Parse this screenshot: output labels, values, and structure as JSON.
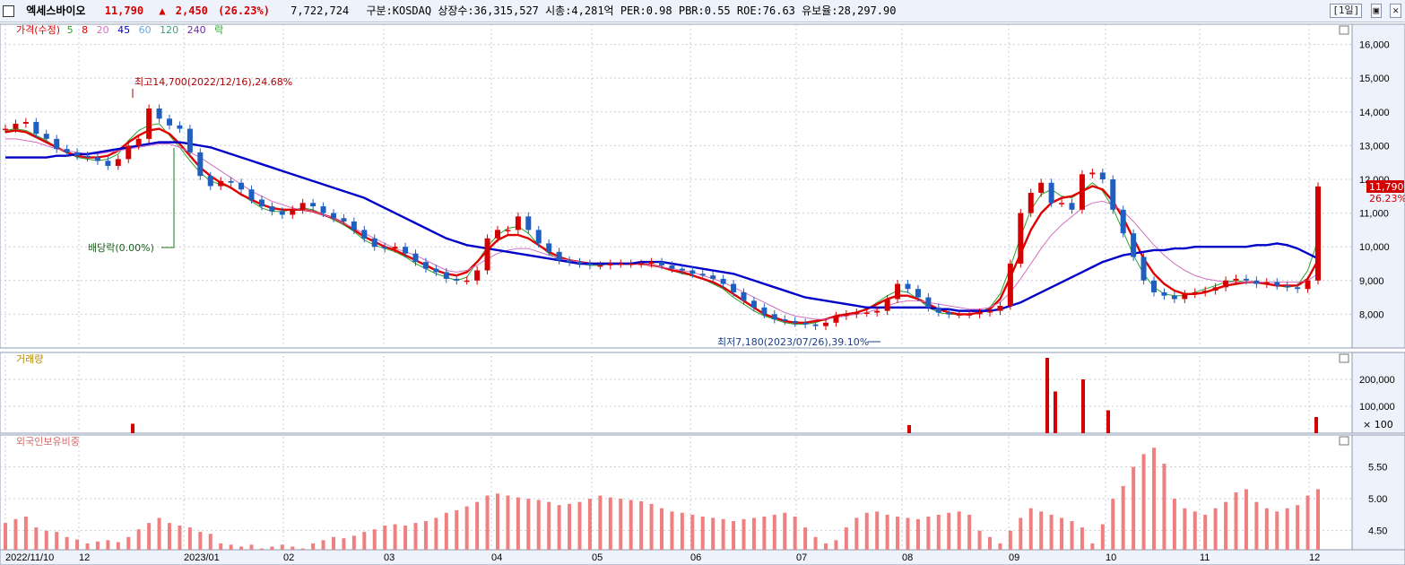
{
  "header": {
    "stock_name": "엑세스바이오",
    "price": "11,790",
    "change_arrow": "▲",
    "change": "2,450",
    "change_pct": "(26.23%)",
    "volume": "7,722,724",
    "info": "구분:KOSDAQ 상장수:36,315,527 시총:4,281억 PER:0.98 PBR:0.55 ROE:76.63 유보율:28,297.90",
    "period_button": "[1일]"
  },
  "price_panel": {
    "legend": [
      {
        "label": "가격(수정)",
        "color": "#d40000",
        "icon": "candle-icon"
      },
      {
        "label": "5",
        "color": "#2ca02c"
      },
      {
        "label": "8",
        "color": "#e00000"
      },
      {
        "label": "20",
        "color": "#d070c0"
      },
      {
        "label": "45",
        "color": "#0000c8"
      },
      {
        "label": "60",
        "color": "#6aa7d8"
      },
      {
        "label": "120",
        "color": "#3aa37a"
      },
      {
        "label": "240",
        "color": "#7030a0"
      },
      {
        "label": "락",
        "color": "#2ca02c"
      }
    ],
    "annotations": {
      "high": "최고14,700(2022/12/16),24.68%",
      "low": "최저7,180(2023/07/26),39.10%",
      "dividend": "배당락(0.00%)"
    },
    "last_price_label": "11,790",
    "last_pct_label": "26.23%"
  },
  "volume_panel": {
    "legend": "거래량",
    "unit_label": "× 100"
  },
  "foreign_panel": {
    "legend": "외국인보유비중"
  },
  "colors": {
    "up": "#d40000",
    "down": "#1f5fbf",
    "grid": "#c7cdd8",
    "axis_bg": "#eef2fa"
  },
  "chart_data": [
    {
      "type": "candlestick",
      "title": "",
      "x": [
        "2022/11/10",
        "12",
        "2023/01",
        "02",
        "03",
        "04",
        "05",
        "06",
        "07",
        "08",
        "09",
        "10",
        "11",
        "12"
      ],
      "ylim": [
        7000,
        16600
      ],
      "yticks": [
        8000,
        9000,
        10000,
        11000,
        12000,
        13000,
        14000,
        15000,
        16000
      ],
      "ytick_labels": [
        "8,000",
        "9,000",
        "10,000",
        "11,000",
        "12,000",
        "13,000",
        "14,000",
        "15,000",
        "16,000"
      ],
      "close_series": [
        13500,
        13650,
        13700,
        13350,
        13200,
        12900,
        12800,
        12700,
        12650,
        12550,
        12400,
        12600,
        13000,
        13200,
        14100,
        13800,
        13600,
        13500,
        12800,
        12100,
        11800,
        11950,
        11900,
        11700,
        11400,
        11200,
        11050,
        10950,
        11100,
        11300,
        11200,
        11000,
        10850,
        10750,
        10500,
        10250,
        10000,
        9950,
        10000,
        9800,
        9550,
        9350,
        9250,
        9050,
        9000,
        9000,
        9300,
        10250,
        10500,
        10500,
        10900,
        10500,
        10100,
        9850,
        9600,
        9550,
        9500,
        9450,
        9450,
        9500,
        9500,
        9500,
        9500,
        9550,
        9450,
        9350,
        9300,
        9200,
        9150,
        9050,
        8900,
        8650,
        8400,
        8200,
        8000,
        7850,
        7800,
        7750,
        7700,
        7650,
        7750,
        7950,
        8000,
        8050,
        8050,
        8100,
        8450,
        8900,
        8750,
        8500,
        8200,
        8050,
        8000,
        8000,
        8000,
        8050,
        8100,
        8250,
        9500,
        11000,
        11600,
        11900,
        11300,
        11300,
        11100,
        12150,
        12200,
        12000,
        11100,
        10400,
        9700,
        9000,
        8650,
        8550,
        8450,
        8600,
        8650,
        8700,
        8800,
        9000,
        9050,
        9000,
        8900,
        8950,
        8850,
        8800,
        8750,
        9000,
        11790
      ],
      "ma": {
        "5": [
          13450,
          13500,
          13450,
          13300,
          13150,
          12950,
          12800,
          12650,
          12600,
          12550,
          12600,
          12750,
          13150,
          13450,
          13600,
          13650,
          13300,
          12950,
          12550,
          12200,
          11950,
          11850,
          11750,
          11550,
          11350,
          11150,
          11050,
          11050,
          11100,
          11150,
          11100,
          10950,
          10800,
          10650,
          10450,
          10200,
          10050,
          9950,
          9850,
          9700,
          9500,
          9350,
          9200,
          9100,
          9000,
          9100,
          9550,
          10000,
          10350,
          10550,
          10600,
          10400,
          10050,
          9800,
          9600,
          9550,
          9500,
          9450,
          9450,
          9500,
          9500,
          9500,
          9500,
          9450,
          9400,
          9300,
          9200,
          9150,
          9050,
          8900,
          8750,
          8500,
          8300,
          8100,
          7950,
          7850,
          7750,
          7700,
          7700,
          7750,
          7850,
          7950,
          8000,
          8050,
          8150,
          8350,
          8550,
          8700,
          8650,
          8450,
          8200,
          8050,
          8000,
          8000,
          8000,
          8050,
          8200,
          8600,
          9400,
          10300,
          11100,
          11550,
          11700,
          11500,
          11450,
          11650,
          11900,
          11650,
          11150,
          10450,
          9750,
          9200,
          8800,
          8600,
          8550,
          8550,
          8650,
          8750,
          8850,
          8950,
          9000,
          8950,
          8950,
          8900,
          8850,
          8800,
          8850,
          9300,
          10200
        ],
        "8": [
          13400,
          13450,
          13400,
          13250,
          13100,
          12950,
          12800,
          12700,
          12650,
          12650,
          12700,
          12850,
          13100,
          13300,
          13450,
          13500,
          13350,
          13050,
          12700,
          12350,
          12100,
          11900,
          11750,
          11550,
          11400,
          11250,
          11150,
          11100,
          11100,
          11100,
          11050,
          10950,
          10850,
          10700,
          10500,
          10300,
          10150,
          10000,
          9900,
          9750,
          9600,
          9450,
          9300,
          9200,
          9150,
          9250,
          9550,
          9900,
          10200,
          10350,
          10350,
          10250,
          10050,
          9850,
          9700,
          9600,
          9550,
          9500,
          9500,
          9500,
          9500,
          9500,
          9500,
          9450,
          9400,
          9300,
          9250,
          9150,
          9050,
          8950,
          8800,
          8600,
          8400,
          8200,
          8000,
          7900,
          7800,
          7750,
          7750,
          7800,
          7850,
          7950,
          8000,
          8050,
          8150,
          8300,
          8450,
          8550,
          8550,
          8450,
          8300,
          8150,
          8050,
          8000,
          8000,
          8050,
          8150,
          8450,
          9100,
          9800,
          10500,
          11000,
          11300,
          11450,
          11500,
          11650,
          11800,
          11700,
          11350,
          10850,
          10250,
          9650,
          9200,
          8900,
          8700,
          8600,
          8600,
          8650,
          8750,
          8850,
          8900,
          8950,
          8950,
          8900,
          8850,
          8850,
          8850,
          9050,
          9600
        ],
        "20": [
          13200,
          13200,
          13150,
          13100,
          13000,
          12900,
          12850,
          12800,
          12750,
          12750,
          12800,
          12850,
          12900,
          12950,
          13000,
          13050,
          13050,
          12950,
          12800,
          12650,
          12450,
          12250,
          12050,
          11850,
          11650,
          11500,
          11350,
          11250,
          11150,
          11100,
          11050,
          10950,
          10850,
          10700,
          10550,
          10400,
          10250,
          10100,
          9950,
          9850,
          9750,
          9600,
          9450,
          9300,
          9250,
          9300,
          9450,
          9650,
          9800,
          9900,
          9950,
          9950,
          9850,
          9750,
          9650,
          9600,
          9550,
          9500,
          9500,
          9500,
          9500,
          9500,
          9500,
          9450,
          9400,
          9350,
          9300,
          9250,
          9150,
          9050,
          8950,
          8800,
          8650,
          8500,
          8350,
          8200,
          8050,
          7950,
          7900,
          7850,
          7850,
          7900,
          7950,
          8000,
          8050,
          8150,
          8250,
          8350,
          8400,
          8400,
          8350,
          8300,
          8250,
          8200,
          8150,
          8150,
          8200,
          8350,
          8650,
          9050,
          9500,
          9950,
          10350,
          10650,
          10900,
          11150,
          11300,
          11350,
          11250,
          11050,
          10750,
          10400,
          10050,
          9750,
          9500,
          9300,
          9150,
          9050,
          9000,
          8950,
          8950,
          8950,
          8950,
          8950,
          8950,
          8950,
          8950,
          9000,
          9200
        ],
        "45": [
          12650,
          12650,
          12650,
          12650,
          12650,
          12700,
          12700,
          12750,
          12750,
          12800,
          12850,
          12900,
          12950,
          13000,
          13050,
          13100,
          13100,
          13100,
          13050,
          13000,
          12950,
          12850,
          12750,
          12650,
          12550,
          12450,
          12350,
          12250,
          12150,
          12050,
          11950,
          11850,
          11750,
          11650,
          11550,
          11450,
          11300,
          11150,
          11000,
          10850,
          10700,
          10550,
          10400,
          10250,
          10150,
          10050,
          10000,
          9950,
          9900,
          9850,
          9800,
          9750,
          9700,
          9650,
          9600,
          9550,
          9500,
          9500,
          9500,
          9500,
          9500,
          9500,
          9550,
          9550,
          9550,
          9500,
          9450,
          9400,
          9350,
          9300,
          9250,
          9200,
          9100,
          9000,
          8900,
          8800,
          8700,
          8600,
          8500,
          8450,
          8400,
          8350,
          8300,
          8250,
          8200,
          8200,
          8200,
          8200,
          8200,
          8200,
          8200,
          8150,
          8150,
          8100,
          8100,
          8100,
          8100,
          8150,
          8250,
          8350,
          8500,
          8650,
          8800,
          8950,
          9100,
          9250,
          9400,
          9550,
          9650,
          9750,
          9800,
          9850,
          9900,
          9900,
          9950,
          9950,
          10000,
          10000,
          10000,
          10000,
          10000,
          10000,
          10050,
          10050,
          10100,
          10050,
          9950,
          9800,
          9650
        ]
      }
    },
    {
      "type": "bar",
      "title": "거래량",
      "ylim": [
        0,
        300000
      ],
      "yticks": [
        100000,
        200000
      ],
      "ytick_labels": [
        "100,000",
        "200,000"
      ],
      "spikes": [
        {
          "x": "2022/12",
          "value": 35000
        },
        {
          "x": "2023/08",
          "value": 30000
        },
        {
          "x": "2023/09",
          "value": 280000
        },
        {
          "x": "2023/09",
          "value": 155000
        },
        {
          "x": "2023/09",
          "value": 200000
        },
        {
          "x": "2023/10",
          "value": 85000
        },
        {
          "x": "2023/12",
          "value": 60000
        }
      ]
    },
    {
      "type": "bar",
      "title": "외국인보유비중",
      "ylim": [
        4.2,
        6.0
      ],
      "yticks": [
        4.5,
        5.0,
        5.5
      ],
      "ytick_labels": [
        "4.50",
        "5.00",
        "5.50"
      ],
      "values": [
        4.62,
        4.68,
        4.72,
        4.55,
        4.5,
        4.48,
        4.4,
        4.36,
        4.3,
        4.33,
        4.35,
        4.32,
        4.4,
        4.52,
        4.62,
        4.7,
        4.62,
        4.58,
        4.55,
        4.48,
        4.45,
        4.3,
        4.28,
        4.25,
        4.28,
        4.22,
        4.25,
        4.28,
        4.25,
        4.22,
        4.3,
        4.35,
        4.4,
        4.38,
        4.42,
        4.48,
        4.52,
        4.58,
        4.6,
        4.58,
        4.62,
        4.65,
        4.7,
        4.78,
        4.82,
        4.88,
        4.95,
        5.05,
        5.08,
        5.05,
        5.02,
        5.0,
        4.98,
        4.95,
        4.9,
        4.92,
        4.95,
        5.0,
        5.05,
        5.02,
        5.0,
        4.98,
        4.96,
        4.92,
        4.85,
        4.8,
        4.78,
        4.75,
        4.72,
        4.7,
        4.68,
        4.65,
        4.68,
        4.7,
        4.72,
        4.75,
        4.78,
        4.72,
        4.55,
        4.4,
        4.3,
        4.35,
        4.55,
        4.7,
        4.78,
        4.8,
        4.75,
        4.72,
        4.7,
        4.68,
        4.72,
        4.75,
        4.78,
        4.8,
        4.75,
        4.5,
        4.4,
        4.3,
        4.5,
        4.7,
        4.85,
        4.8,
        4.75,
        4.7,
        4.65,
        4.55,
        4.3,
        4.6,
        5.0,
        5.2,
        5.5,
        5.7,
        5.8,
        5.55,
        5.0,
        4.85,
        4.8,
        4.75,
        4.85,
        4.95,
        5.1,
        5.15,
        4.95,
        4.85,
        4.8,
        4.85,
        4.9,
        5.05,
        5.15
      ]
    }
  ]
}
